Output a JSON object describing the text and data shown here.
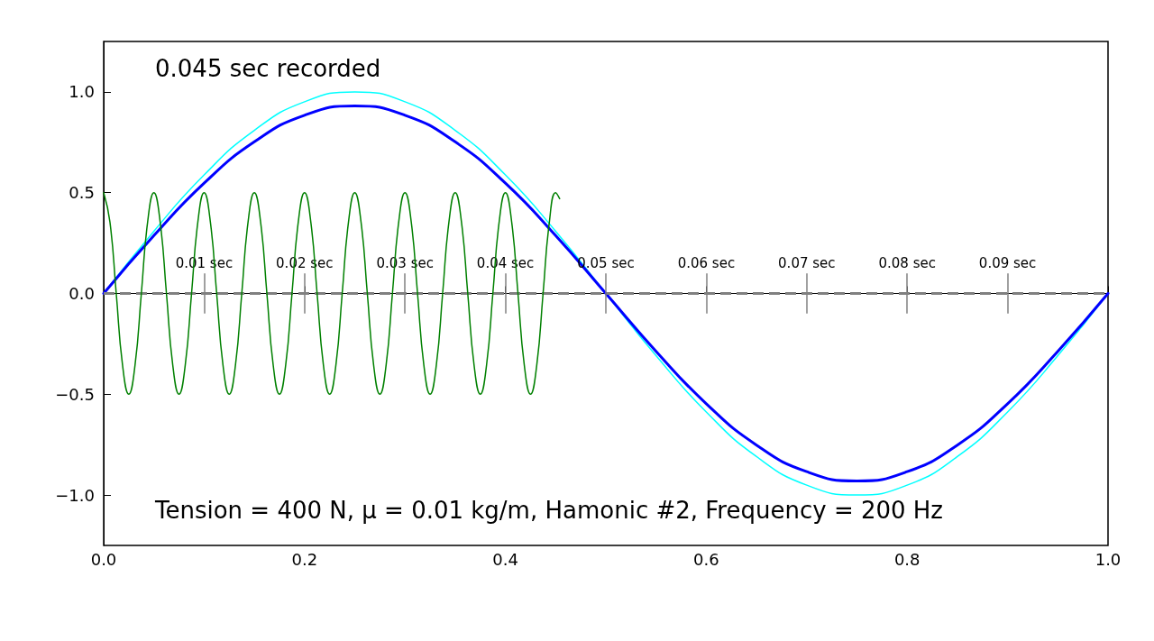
{
  "chart_data": {
    "type": "line",
    "xlim": [
      0,
      1
    ],
    "ylim": [
      -1.25,
      1.25
    ],
    "xticks": [
      {
        "value": 0,
        "label": "0.0"
      },
      0.2,
      0.4,
      0.6,
      0.8,
      {
        "value": 1,
        "label": "1.0"
      }
    ],
    "yticks": [
      {
        "value": -1,
        "label": "−1.0"
      },
      -0.5,
      {
        "value": 0,
        "label": "0.0"
      },
      0.5,
      {
        "value": 1,
        "label": "1.0"
      }
    ],
    "grid": false,
    "marker": "none",
    "series": [
      {
        "color": "#00ffff",
        "x": [
          0,
          0.05,
          0.1,
          0.15,
          0.2,
          0.25,
          0.3,
          0.35,
          0.4,
          0.45,
          0.5,
          0.55,
          0.6,
          0.65,
          0.7,
          0.75,
          0.8,
          0.85,
          0.9,
          0.95,
          1.0
        ],
        "values": [
          0,
          0.309,
          0.588,
          0.809,
          0.951,
          1,
          0.951,
          0.809,
          0.588,
          0.309,
          0,
          -0.309,
          -0.588,
          -0.809,
          -0.951,
          -1,
          -0.951,
          -0.809,
          -0.588,
          -0.309,
          0
        ]
      },
      {
        "color": "#0000ff",
        "x": [
          0,
          0.05,
          0.1,
          0.15,
          0.2,
          0.25,
          0.3,
          0.35,
          0.4,
          0.45,
          0.5,
          0.55,
          0.6,
          0.65,
          0.7,
          0.75,
          0.8,
          0.85,
          0.9,
          0.95,
          1.0
        ],
        "values": [
          0,
          0.287,
          0.547,
          0.752,
          0.884,
          0.93,
          0.884,
          0.752,
          0.547,
          0.287,
          0,
          -0.287,
          -0.547,
          -0.752,
          -0.884,
          -0.93,
          -0.884,
          -0.752,
          -0.547,
          -0.287,
          0
        ]
      },
      {
        "color": "#008000",
        "x": [
          0,
          0.00625,
          0.0125,
          0.01875,
          0.025,
          0.03125,
          0.0375,
          0.04375,
          0.05,
          0.05625,
          0.0625,
          0.06875,
          0.075,
          0.08125,
          0.0875,
          0.09375,
          0.1,
          0.10625,
          0.1125,
          0.11875,
          0.125,
          0.13125,
          0.1375,
          0.14375,
          0.15,
          0.15625,
          0.1625,
          0.16875,
          0.175,
          0.18125,
          0.1875,
          0.19375,
          0.2,
          0.20625,
          0.2125,
          0.21875,
          0.225,
          0.23125,
          0.2375,
          0.24375,
          0.25,
          0.25625,
          0.2625,
          0.26875,
          0.275,
          0.28125,
          0.2875,
          0.29375,
          0.3,
          0.30625,
          0.3125,
          0.31875,
          0.325,
          0.33125,
          0.3375,
          0.34375,
          0.35,
          0.35625,
          0.3625,
          0.36875,
          0.375,
          0.38125,
          0.3875,
          0.39375,
          0.4,
          0.40625,
          0.4125,
          0.41875,
          0.425,
          0.43125,
          0.4375,
          0.44375,
          0.45,
          0.454
        ],
        "values": [
          0.5,
          0.354,
          0,
          -0.354,
          -0.5,
          -0.354,
          0,
          0.354,
          0.5,
          0.354,
          0,
          -0.354,
          -0.5,
          -0.354,
          0,
          0.354,
          0.5,
          0.354,
          0,
          -0.354,
          -0.5,
          -0.354,
          0,
          0.354,
          0.5,
          0.354,
          0,
          -0.354,
          -0.5,
          -0.354,
          0,
          0.354,
          0.5,
          0.354,
          0,
          -0.354,
          -0.5,
          -0.354,
          0,
          0.354,
          0.5,
          0.354,
          0,
          -0.354,
          -0.5,
          -0.354,
          0,
          0.354,
          0.5,
          0.354,
          0,
          -0.354,
          -0.5,
          -0.354,
          0,
          0.354,
          0.5,
          0.354,
          0,
          -0.354,
          -0.5,
          -0.354,
          0,
          0.354,
          0.5,
          0.354,
          0,
          -0.354,
          -0.5,
          -0.354,
          0,
          0.354,
          0.5,
          0.47
        ]
      }
    ],
    "ref_lines": [
      {
        "axis": "y",
        "value": 0,
        "color": "#808080",
        "line_style": "dashed"
      }
    ],
    "annotations": [
      "0.045 sec recorded",
      "Tension = 400 N, μ = 0.01 kg/m, Hamonic #2, Frequency = 200 Hz",
      {
        "text": "0.01 sec",
        "x": 0.1,
        "y": 0
      },
      {
        "text": "0.02 sec",
        "x": 0.2,
        "y": 0
      },
      {
        "text": "0.03 sec",
        "x": 0.3,
        "y": 0
      },
      {
        "text": "0.04 sec",
        "x": 0.4,
        "y": 0
      },
      {
        "text": "0.05 sec",
        "x": 0.5,
        "y": 0
      },
      {
        "text": "0.06 sec",
        "x": 0.6,
        "y": 0
      },
      {
        "text": "0.07 sec",
        "x": 0.7,
        "y": 0
      },
      {
        "text": "0.08 sec",
        "x": 0.8,
        "y": 0
      },
      {
        "text": "0.09 sec",
        "x": 0.9,
        "y": 0
      }
    ]
  }
}
